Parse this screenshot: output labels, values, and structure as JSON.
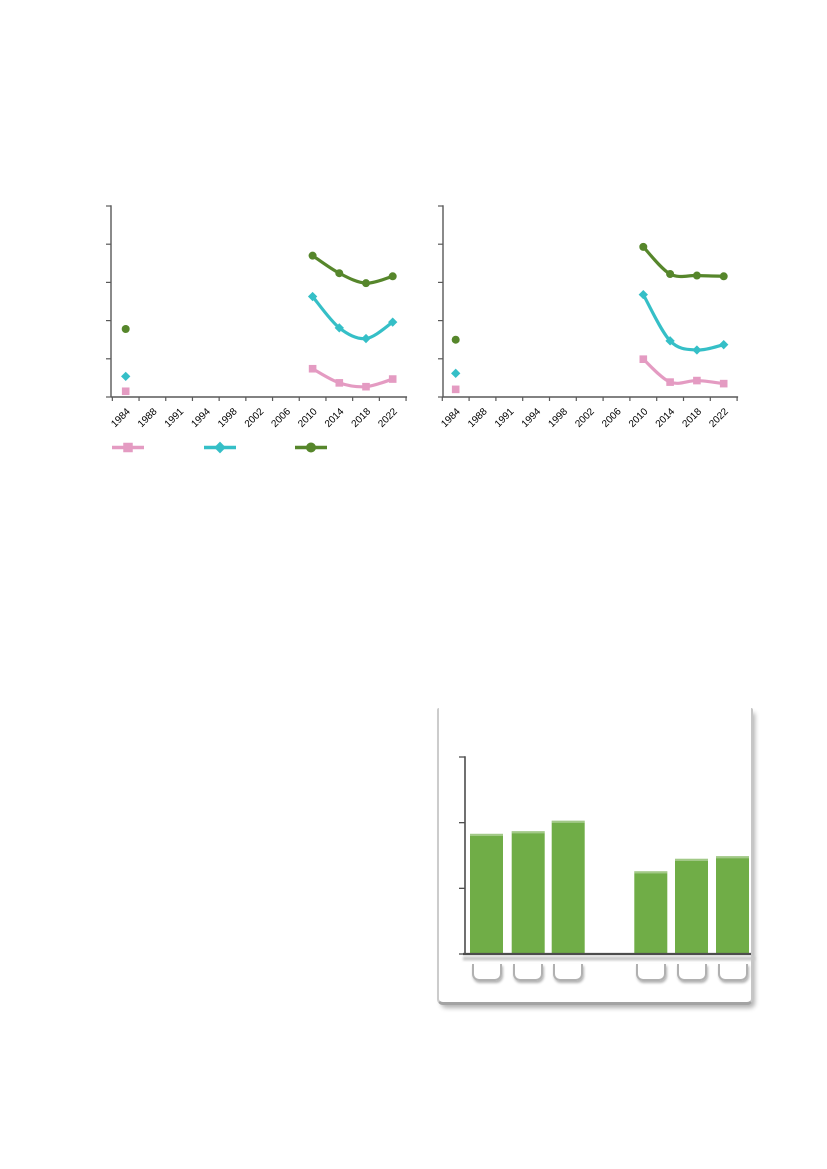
{
  "page": {
    "background_color": "#ffffff",
    "kind": "document page with three charts, no visible titles or axis value labels"
  },
  "colors": {
    "series_pink": "#e49bc2",
    "series_teal": "#35bfc7",
    "series_green": "#56862b",
    "bar_green": "#70ad47",
    "line_axis": "#595959",
    "bar_axis": "#4d4d4d",
    "tick_label": "#000000",
    "card_border": "#c6c6c6",
    "label_box_border": "#b1b1b1"
  },
  "chart_data": [
    {
      "id": "line_chart_left",
      "type": "line",
      "title": "",
      "xlabel": "",
      "ylabel": "",
      "grid": false,
      "categories": [
        "1984",
        "1988",
        "1991",
        "1994",
        "1998",
        "2002",
        "2006",
        "2010",
        "2014",
        "2018",
        "2022"
      ],
      "x_tick_label_rotation_deg": -45,
      "y_axis": {
        "tick_count": 6,
        "tick_labels": [],
        "ylim": [
          0,
          5
        ]
      },
      "series": [
        {
          "name": "pink_square_series",
          "label": "",
          "marker": "square",
          "color": "#e49bc2",
          "values": [
            0.15,
            null,
            null,
            null,
            null,
            null,
            null,
            0.74,
            0.37,
            0.27,
            0.47
          ]
        },
        {
          "name": "teal_diamond_series",
          "label": "",
          "marker": "diamond",
          "color": "#35bfc7",
          "values": [
            0.54,
            null,
            null,
            null,
            null,
            null,
            null,
            2.63,
            1.81,
            1.53,
            1.96
          ]
        },
        {
          "name": "green_circle_series",
          "label": "",
          "marker": "circle",
          "color": "#56862b",
          "values": [
            1.78,
            null,
            null,
            null,
            null,
            null,
            null,
            3.7,
            3.24,
            2.98,
            3.16
          ]
        }
      ],
      "legend": {
        "visible": true,
        "position": "below-chart",
        "labels": [
          "",
          "",
          ""
        ]
      }
    },
    {
      "id": "line_chart_right",
      "type": "line",
      "title": "",
      "xlabel": "",
      "ylabel": "",
      "grid": false,
      "categories": [
        "1984",
        "1988",
        "1991",
        "1994",
        "1998",
        "2002",
        "2006",
        "2010",
        "2014",
        "2018",
        "2022"
      ],
      "x_tick_label_rotation_deg": -45,
      "y_axis": {
        "tick_count": 6,
        "tick_labels": [],
        "ylim": [
          0,
          5
        ]
      },
      "series": [
        {
          "name": "pink_square_series",
          "label": "",
          "marker": "square",
          "color": "#e49bc2",
          "values": [
            0.2,
            null,
            null,
            null,
            null,
            null,
            null,
            0.99,
            0.39,
            0.43,
            0.35
          ]
        },
        {
          "name": "teal_diamond_series",
          "label": "",
          "marker": "diamond",
          "color": "#35bfc7",
          "values": [
            0.62,
            null,
            null,
            null,
            null,
            null,
            null,
            2.68,
            1.47,
            1.23,
            1.37
          ]
        },
        {
          "name": "green_circle_series",
          "label": "",
          "marker": "circle",
          "color": "#56862b",
          "values": [
            1.5,
            null,
            null,
            null,
            null,
            null,
            null,
            3.93,
            3.22,
            3.18,
            3.16
          ]
        }
      ],
      "legend": {
        "visible": false,
        "labels": []
      }
    },
    {
      "id": "bar_chart_card",
      "type": "bar",
      "title": "",
      "xlabel": "",
      "ylabel": "",
      "grid": false,
      "categories": [
        "",
        "",
        "",
        "",
        "",
        ""
      ],
      "category_groups": [
        [
          0,
          1,
          2
        ],
        [
          3,
          4,
          5
        ]
      ],
      "values": [
        1.83,
        1.87,
        2.03,
        1.26,
        1.45,
        1.49
      ],
      "bar_color": "#70ad47",
      "y_axis": {
        "tick_count": 4,
        "tick_labels": [],
        "ylim": [
          0,
          3
        ]
      },
      "x_labels_style": "empty-rounded-placeholder-boxes"
    }
  ]
}
